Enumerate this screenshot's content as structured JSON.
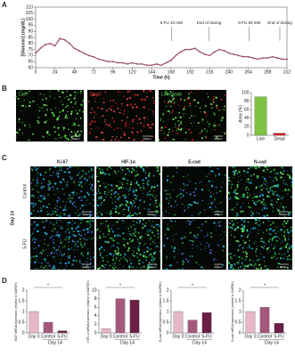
{
  "figure": {
    "panel_labels": [
      "A",
      "B",
      "C",
      "D"
    ],
    "b_images": [
      "Live",
      "Dead",
      "Live/Dead"
    ],
    "c_columns": [
      "Ki-67",
      "HIF-1α",
      "E-cad",
      "N-cad"
    ],
    "c_rows": [
      "Control",
      "5-FU"
    ],
    "c_day": "Day 14",
    "scale_bar": "200µm"
  },
  "chart_data": [
    {
      "type": "line",
      "y_label": "[Glucose] (mg/dL)",
      "x_label": "Time (h)",
      "color": "#9c4a72",
      "annotations": [
        "5-FU 10 mM",
        "End of dosing",
        "5-FU 50 mM",
        "End of dosing"
      ],
      "x": [
        0,
        6,
        12,
        18,
        24,
        30,
        36,
        42,
        48,
        54,
        60,
        66,
        72,
        78,
        84,
        90,
        96,
        102,
        108,
        114,
        120,
        126,
        132,
        138,
        144,
        150,
        156,
        162,
        168,
        174,
        180,
        186,
        192,
        198,
        204,
        210,
        216,
        222,
        228,
        234,
        240,
        246,
        252,
        258,
        264,
        270,
        276,
        282,
        288,
        294,
        300,
        306,
        312
      ],
      "values": [
        72,
        76,
        79,
        80,
        78,
        84,
        83,
        80,
        76,
        74,
        72,
        70,
        69,
        67,
        66,
        65,
        65,
        64,
        64,
        63,
        64,
        63,
        63,
        62,
        62,
        63,
        62,
        64,
        66,
        70,
        73,
        75,
        75,
        76,
        73,
        71,
        70,
        73,
        75,
        74,
        72,
        71,
        70,
        69,
        69,
        68,
        67,
        68,
        68,
        69,
        68,
        67,
        67
      ],
      "xlim": [
        0,
        312
      ],
      "xticks": [
        0,
        24,
        48,
        72,
        96,
        120,
        144,
        168,
        192,
        216,
        240,
        264,
        288,
        312
      ],
      "ylim": [
        60,
        110
      ],
      "yticks": [
        60,
        65,
        70,
        75,
        80,
        85,
        90,
        95,
        100,
        105,
        110
      ]
    },
    {
      "type": "bar",
      "y_label": "Area (%)",
      "categories": [
        "Live",
        "Dead"
      ],
      "values": [
        90,
        5
      ],
      "colors": [
        "#7dc242",
        "#d7191c"
      ],
      "ylim": [
        0,
        100
      ],
      "yticks": [
        0,
        20,
        40,
        60,
        80,
        100
      ]
    },
    {
      "type": "bar",
      "y_label": "Ki67 mRNA expression (relative to GAPDH)",
      "group_label": "Day 14",
      "categories": [
        "Day 0",
        "Control",
        "5-FU"
      ],
      "values": [
        1.0,
        0.5,
        0.1
      ],
      "colors": [
        "#e7b6c9",
        "#a5587c",
        "#6b1f46"
      ],
      "ylim": [
        0,
        2
      ],
      "yticks": [
        0,
        0.5,
        1,
        1.5,
        2
      ],
      "annotations": [
        "*"
      ]
    },
    {
      "type": "bar",
      "y_label": "HIF1-α mRNA expression (relative to GAPDH)",
      "group_label": "Day 14",
      "categories": [
        "Day 0",
        "Control",
        "5-FU"
      ],
      "values": [
        1,
        8,
        7.7
      ],
      "colors": [
        "#e7b6c9",
        "#a5587c",
        "#6b1f46"
      ],
      "ylim": [
        0,
        10
      ],
      "yticks": [
        0,
        2,
        4,
        6,
        8,
        10
      ],
      "annotations": [
        "*"
      ]
    },
    {
      "type": "bar",
      "y_label": "E-cad mRNA expression (relative to GAPDH)",
      "group_label": "Day 14",
      "categories": [
        "Day 0",
        "Control",
        "5-FU"
      ],
      "values": [
        1.0,
        0.6,
        0.95
      ],
      "colors": [
        "#e7b6c9",
        "#a5587c",
        "#6b1f46"
      ],
      "ylim": [
        0,
        2
      ],
      "yticks": [
        0,
        0.5,
        1,
        1.5,
        2
      ],
      "annotations": [
        "*"
      ]
    },
    {
      "type": "bar",
      "y_label": "N-cad mRNA expression (relative to GAPDH)",
      "group_label": "Day 14",
      "categories": [
        "Day 0",
        "Control",
        "5-FU"
      ],
      "values": [
        1.0,
        1.2,
        0.45
      ],
      "colors": [
        "#e7b6c9",
        "#a5587c",
        "#6b1f46"
      ],
      "ylim": [
        0,
        2
      ],
      "yticks": [
        0,
        0.5,
        1,
        1.5,
        2
      ],
      "annotations": [
        "*"
      ]
    }
  ]
}
